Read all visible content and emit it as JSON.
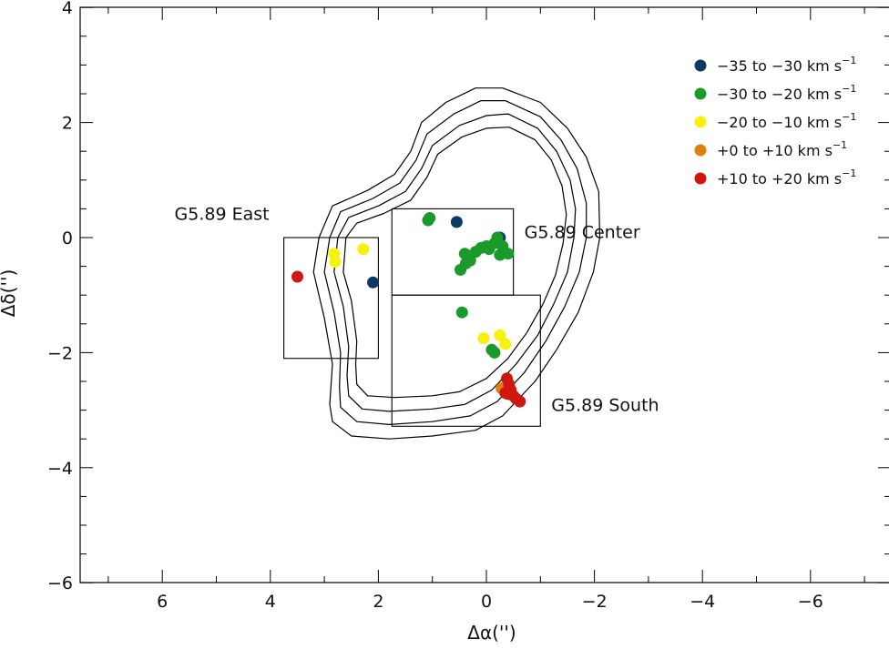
{
  "chart_data": {
    "type": "scatter",
    "xlabel": "Δα('')",
    "ylabel": "Δδ('')",
    "xlim": [
      7.5,
      -7.5
    ],
    "ylim": [
      -6.0,
      4.0
    ],
    "x_ticks": [
      6,
      4,
      2,
      0,
      -2,
      -4,
      -6
    ],
    "x_tick_labels": [
      "6",
      "4",
      "2",
      "0",
      "−2",
      "−4",
      "−6"
    ],
    "y_ticks": [
      4,
      2,
      0,
      -2,
      -4,
      -6
    ],
    "y_tick_labels": [
      "4",
      "2",
      "0",
      "−2",
      "−4",
      "−6"
    ],
    "legend_position": "top-right",
    "grid": false,
    "series": [
      {
        "name": "−35 to −30 km s",
        "superscript": "−1",
        "color": "#0d3a63",
        "points": [
          [
            0.55,
            0.27
          ],
          [
            2.1,
            -0.78
          ],
          [
            -0.25,
            0.0
          ]
        ]
      },
      {
        "name": "−30 to −20 km s",
        "superscript": "−1",
        "color": "#1a9a2a",
        "points": [
          [
            1.05,
            0.34
          ],
          [
            1.08,
            0.3
          ],
          [
            -0.05,
            -0.2
          ],
          [
            -0.15,
            -0.1
          ],
          [
            -0.2,
            0.0
          ],
          [
            0.0,
            -0.15
          ],
          [
            0.1,
            -0.18
          ],
          [
            0.2,
            -0.25
          ],
          [
            0.4,
            -0.28
          ],
          [
            0.38,
            -0.45
          ],
          [
            0.3,
            -0.4
          ],
          [
            0.48,
            -0.56
          ],
          [
            -0.3,
            -0.15
          ],
          [
            -0.4,
            -0.28
          ],
          [
            -0.25,
            -0.3
          ],
          [
            0.45,
            -1.3
          ],
          [
            -0.1,
            -1.95
          ],
          [
            -0.15,
            -2.0
          ]
        ]
      },
      {
        "name": "−20 to −10 km s",
        "superscript": "−1",
        "color": "#f6f20d",
        "points": [
          [
            2.82,
            -0.28
          ],
          [
            2.8,
            -0.42
          ],
          [
            2.28,
            -0.2
          ],
          [
            0.05,
            -1.75
          ],
          [
            -0.25,
            -1.7
          ],
          [
            -0.35,
            -1.85
          ]
        ]
      },
      {
        "name": "+0 to +10 km s",
        "superscript": "−1",
        "color": "#e07f10",
        "points": [
          [
            -0.28,
            -2.62
          ]
        ]
      },
      {
        "name": "+10 to +20 km s",
        "superscript": "−1",
        "color": "#d0170f",
        "points": [
          [
            3.5,
            -0.68
          ],
          [
            -0.38,
            -2.45
          ],
          [
            -0.42,
            -2.55
          ],
          [
            -0.45,
            -2.65
          ],
          [
            -0.4,
            -2.72
          ],
          [
            -0.5,
            -2.75
          ],
          [
            -0.55,
            -2.8
          ],
          [
            -0.62,
            -2.85
          ],
          [
            -0.35,
            -2.7
          ]
        ]
      }
    ],
    "regions": [
      {
        "label": "G5.89 East",
        "x1": 3.75,
        "x2": 2.0,
        "y1": 0.0,
        "y2": -2.1
      },
      {
        "label": "G5.89 Center",
        "x1": 1.75,
        "x2": -0.5,
        "y1": 0.5,
        "y2": -1.0
      },
      {
        "label": "G5.89 South",
        "x1": 1.75,
        "x2": -1.0,
        "y1": -1.0,
        "y2": -3.28
      }
    ],
    "contours": [
      [
        [
          -0.3,
          2.6
        ],
        [
          -1.0,
          2.35
        ],
        [
          -1.5,
          1.9
        ],
        [
          -1.85,
          1.4
        ],
        [
          -2.08,
          0.8
        ],
        [
          -2.1,
          0.0
        ],
        [
          -1.98,
          -0.6
        ],
        [
          -1.7,
          -1.3
        ],
        [
          -1.3,
          -1.95
        ],
        [
          -0.9,
          -2.5
        ],
        [
          -0.3,
          -3.1
        ],
        [
          0.2,
          -3.35
        ],
        [
          1.0,
          -3.45
        ],
        [
          1.8,
          -3.5
        ],
        [
          2.5,
          -3.45
        ],
        [
          2.85,
          -3.2
        ],
        [
          2.9,
          -2.9
        ],
        [
          2.85,
          -2.2
        ],
        [
          3.0,
          -1.4
        ],
        [
          3.2,
          -0.6
        ],
        [
          3.1,
          0.0
        ],
        [
          2.85,
          0.55
        ],
        [
          2.2,
          0.82
        ],
        [
          1.7,
          1.1
        ],
        [
          1.4,
          1.5
        ],
        [
          1.2,
          2.0
        ],
        [
          0.75,
          2.35
        ],
        [
          0.2,
          2.6
        ],
        [
          -0.3,
          2.6
        ]
      ],
      [
        [
          -0.35,
          2.38
        ],
        [
          -1.0,
          2.1
        ],
        [
          -1.38,
          1.7
        ],
        [
          -1.68,
          1.2
        ],
        [
          -1.85,
          0.6
        ],
        [
          -1.85,
          0.0
        ],
        [
          -1.72,
          -0.6
        ],
        [
          -1.45,
          -1.2
        ],
        [
          -1.1,
          -1.8
        ],
        [
          -0.7,
          -2.35
        ],
        [
          -0.2,
          -2.85
        ],
        [
          0.3,
          -3.1
        ],
        [
          1.0,
          -3.2
        ],
        [
          1.8,
          -3.25
        ],
        [
          2.4,
          -3.2
        ],
        [
          2.7,
          -2.95
        ],
        [
          2.72,
          -2.6
        ],
        [
          2.7,
          -2.0
        ],
        [
          2.82,
          -1.3
        ],
        [
          3.0,
          -0.6
        ],
        [
          2.9,
          0.0
        ],
        [
          2.7,
          0.45
        ],
        [
          2.1,
          0.68
        ],
        [
          1.6,
          0.95
        ],
        [
          1.3,
          1.35
        ],
        [
          1.1,
          1.8
        ],
        [
          0.6,
          2.15
        ],
        [
          0.1,
          2.38
        ],
        [
          -0.35,
          2.38
        ]
      ],
      [
        [
          -0.4,
          2.15
        ],
        [
          -0.95,
          1.9
        ],
        [
          -1.3,
          1.5
        ],
        [
          -1.55,
          1.0
        ],
        [
          -1.65,
          0.5
        ],
        [
          -1.62,
          0.0
        ],
        [
          -1.5,
          -0.6
        ],
        [
          -1.25,
          -1.15
        ],
        [
          -0.95,
          -1.7
        ],
        [
          -0.55,
          -2.2
        ],
        [
          -0.1,
          -2.65
        ],
        [
          0.4,
          -2.9
        ],
        [
          1.0,
          -2.98
        ],
        [
          1.8,
          -3.02
        ],
        [
          2.3,
          -2.98
        ],
        [
          2.55,
          -2.75
        ],
        [
          2.58,
          -2.4
        ],
        [
          2.55,
          -1.9
        ],
        [
          2.65,
          -1.2
        ],
        [
          2.82,
          -0.6
        ],
        [
          2.75,
          0.0
        ],
        [
          2.55,
          0.35
        ],
        [
          2.0,
          0.55
        ],
        [
          1.5,
          0.8
        ],
        [
          1.2,
          1.2
        ],
        [
          1.0,
          1.6
        ],
        [
          0.5,
          1.95
        ],
        [
          0.0,
          2.12
        ],
        [
          -0.4,
          2.15
        ]
      ],
      [
        [
          -0.42,
          1.92
        ],
        [
          -0.9,
          1.7
        ],
        [
          -1.2,
          1.35
        ],
        [
          -1.4,
          0.9
        ],
        [
          -1.48,
          0.4
        ],
        [
          -1.42,
          -0.1
        ],
        [
          -1.28,
          -0.65
        ],
        [
          -1.05,
          -1.15
        ],
        [
          -0.75,
          -1.65
        ],
        [
          -0.4,
          -2.1
        ],
        [
          0.0,
          -2.45
        ],
        [
          0.5,
          -2.68
        ],
        [
          1.0,
          -2.75
        ],
        [
          1.7,
          -2.78
        ],
        [
          2.2,
          -2.75
        ],
        [
          2.4,
          -2.55
        ],
        [
          2.42,
          -2.2
        ],
        [
          2.4,
          -1.8
        ],
        [
          2.5,
          -1.1
        ],
        [
          2.65,
          -0.6
        ],
        [
          2.6,
          0.0
        ],
        [
          2.4,
          0.25
        ],
        [
          1.9,
          0.42
        ],
        [
          1.4,
          0.65
        ],
        [
          1.1,
          1.05
        ],
        [
          0.9,
          1.45
        ],
        [
          0.45,
          1.75
        ],
        [
          0.0,
          1.9
        ],
        [
          -0.42,
          1.92
        ]
      ]
    ]
  }
}
